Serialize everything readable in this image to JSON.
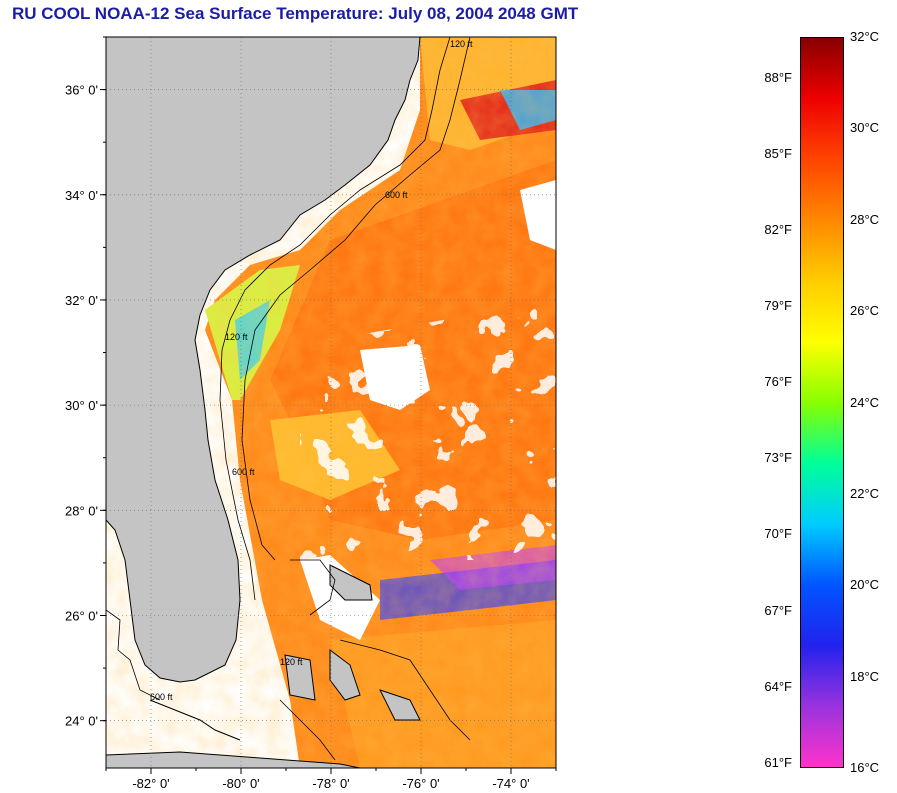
{
  "title": "RU COOL  NOAA-12  Sea Surface Temperature:  July 08, 2004 2048 GMT",
  "map": {
    "lat_labels": [
      "36° 0'",
      "34° 0'",
      "32° 0'",
      "30° 0'",
      "28° 0'",
      "26° 0'",
      "24° 0'"
    ],
    "lat_values": [
      36,
      34,
      32,
      30,
      28,
      26,
      24
    ],
    "lon_labels": [
      "-82° 0'",
      "-80° 0'",
      "-78° 0'",
      "-76° 0'",
      "-74° 0'"
    ],
    "lon_values": [
      -82,
      -80,
      -78,
      -76,
      -74
    ],
    "lat_range": [
      23.1,
      37.0
    ],
    "lon_range": [
      -83.0,
      -73.0
    ],
    "contour_labels": [
      "120 ft",
      "600 ft"
    ],
    "colors": {
      "land": "#c4c4c4",
      "cloud": "#ffffff",
      "water_warm": "#ff7a10",
      "water_mid": "#ffb020",
      "water_cool": "#40d0f0"
    }
  },
  "colorbar": {
    "celsius": [
      "32°C",
      "30°C",
      "28°C",
      "26°C",
      "24°C",
      "22°C",
      "20°C",
      "18°C",
      "16°C"
    ],
    "celsius_values": [
      32,
      30,
      28,
      26,
      24,
      22,
      20,
      18,
      16
    ],
    "fahrenheit": [
      "88°F",
      "85°F",
      "82°F",
      "79°F",
      "76°F",
      "73°F",
      "70°F",
      "67°F",
      "64°F",
      "61°F"
    ],
    "fahrenheit_values": [
      88,
      85,
      82,
      79,
      76,
      73,
      70,
      67,
      64,
      61
    ],
    "range_c": [
      16,
      32
    ],
    "stops": [
      "#ff33cc",
      "#9933dd",
      "#2222ee",
      "#0055ff",
      "#00ccff",
      "#00ff99",
      "#88ff00",
      "#ffff00",
      "#ffcc00",
      "#ff8800",
      "#ff4400",
      "#ee0000",
      "#880000"
    ]
  }
}
